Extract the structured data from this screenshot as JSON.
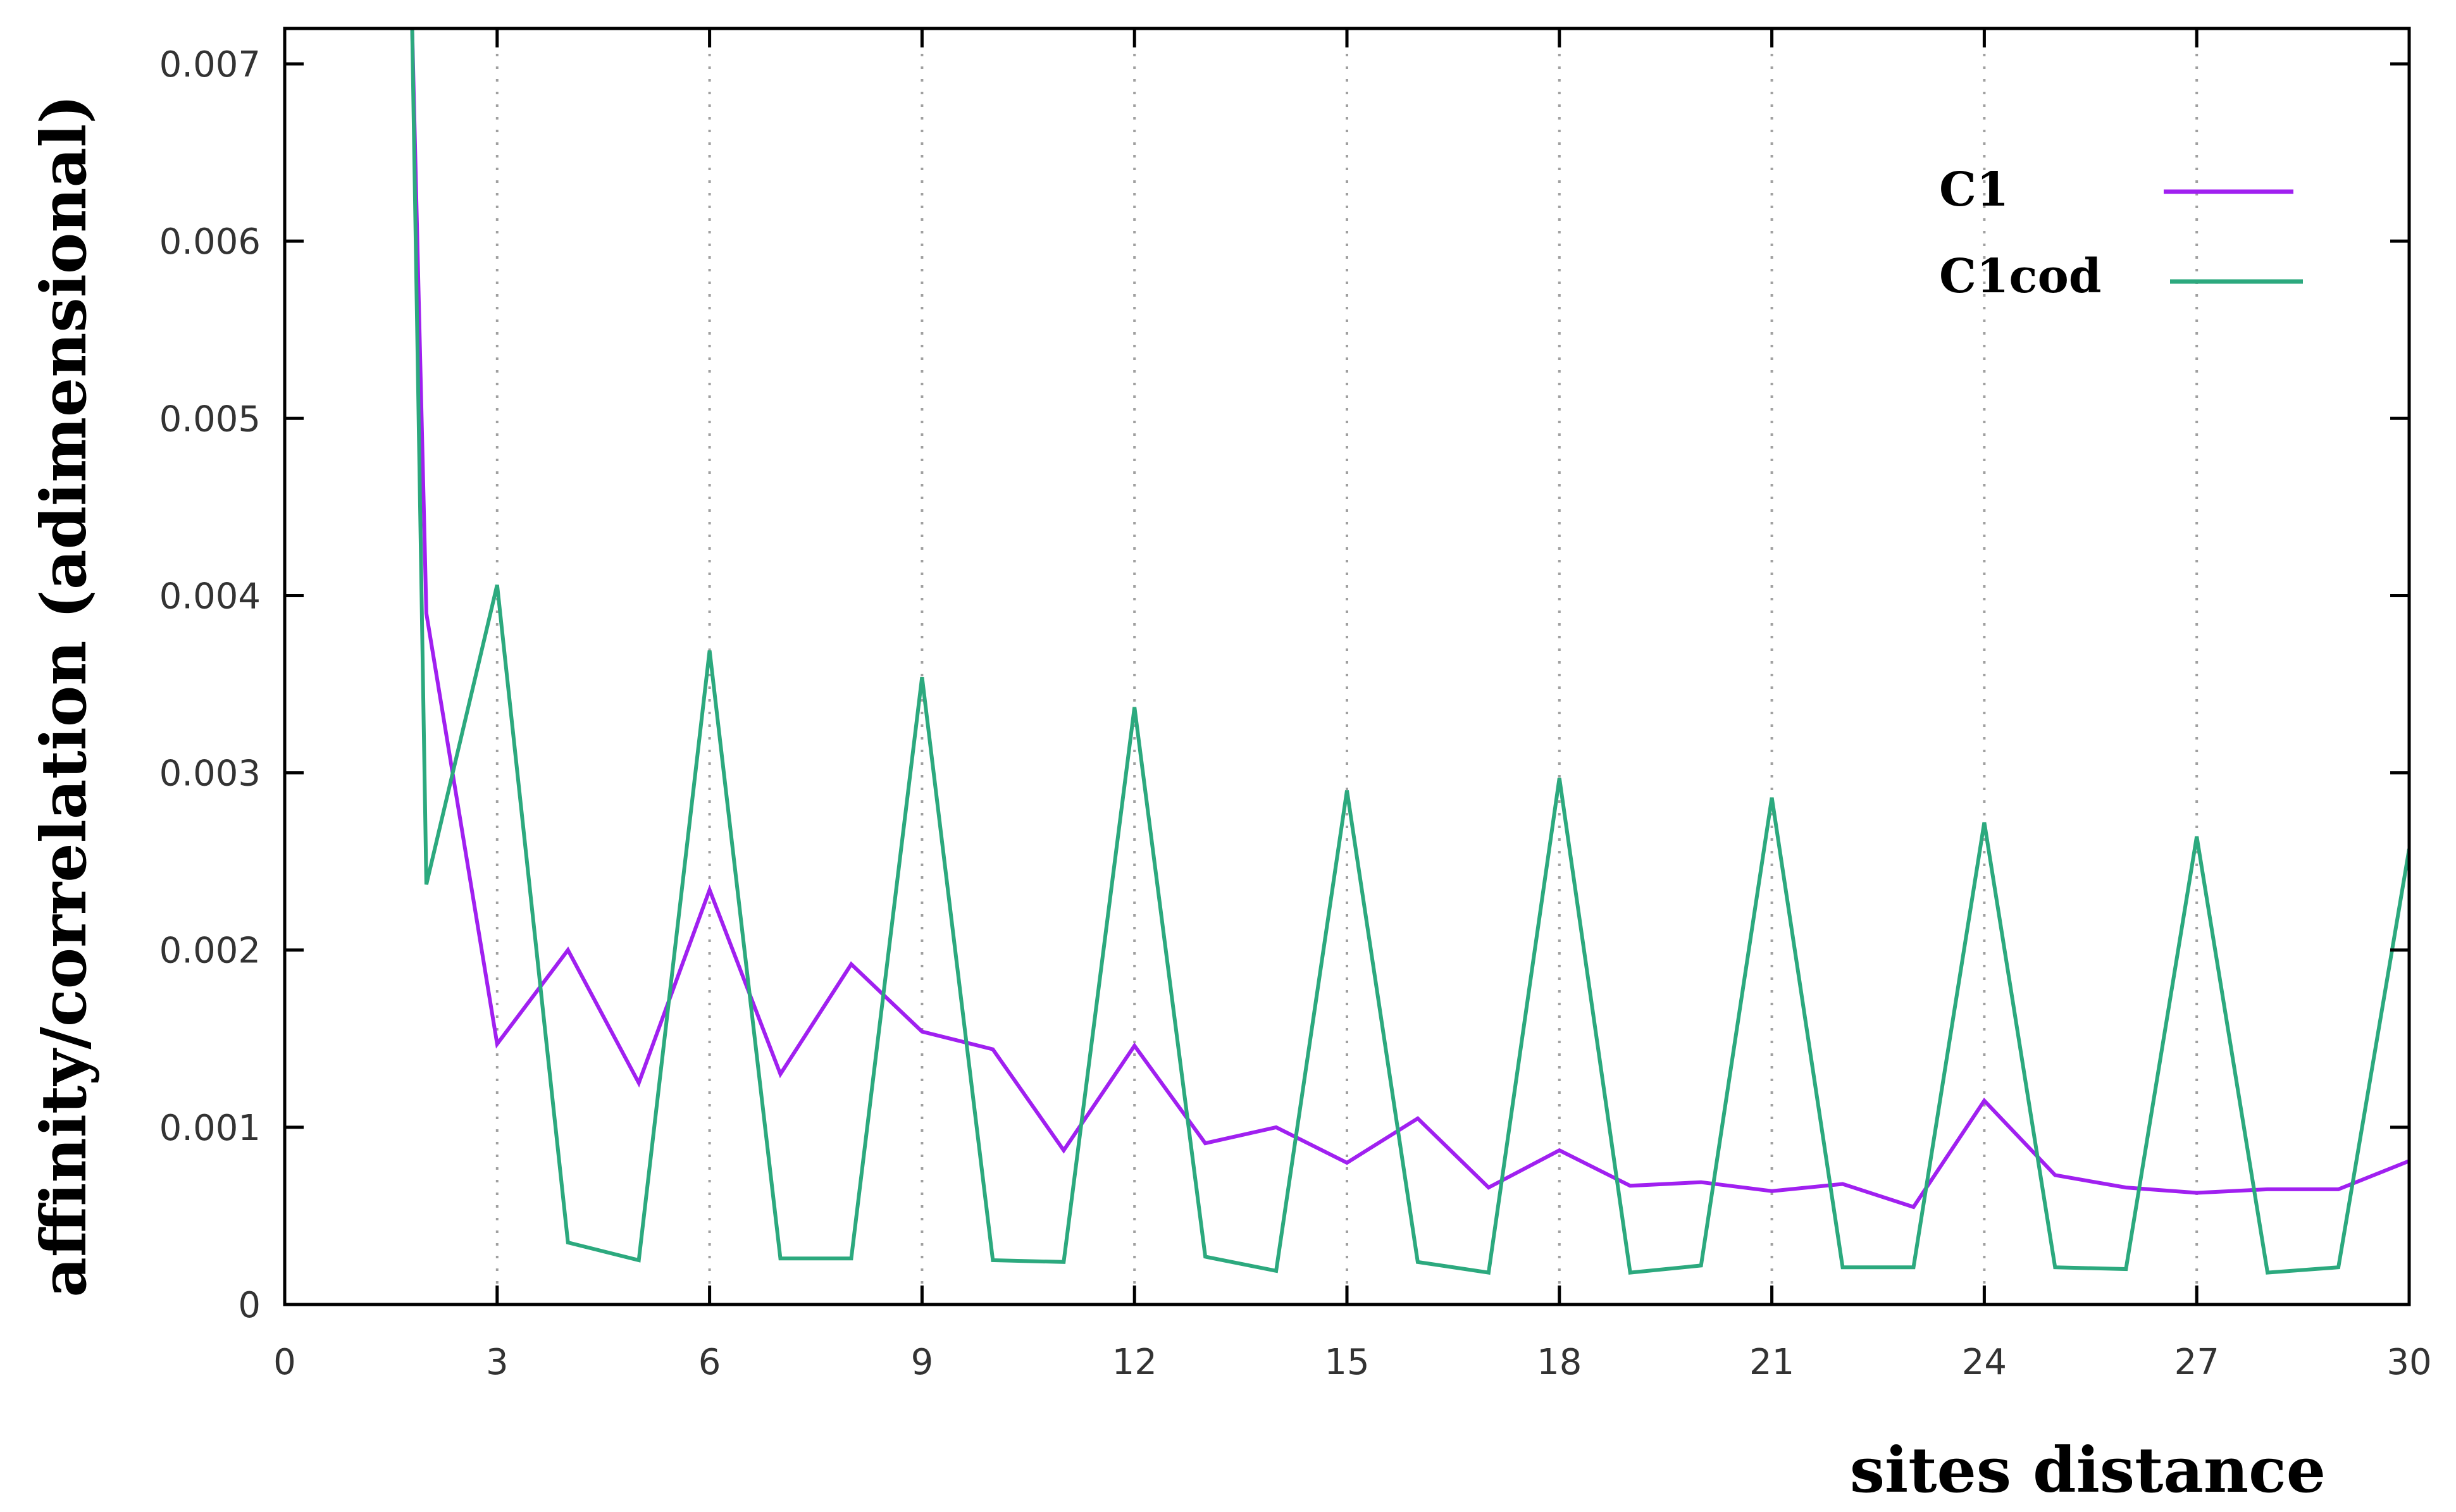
{
  "chart_data": {
    "type": "line",
    "title": "",
    "xlabel": "sites distance",
    "ylabel": "affinity/correlation (adimensional)",
    "xlim": [
      0,
      30
    ],
    "ylim": [
      0,
      0.0072
    ],
    "x_ticks": [
      0,
      3,
      6,
      9,
      12,
      15,
      18,
      21,
      24,
      27,
      30
    ],
    "y_ticks": [
      0,
      0.001,
      0.002,
      0.003,
      0.004,
      0.005,
      0.006,
      0.007
    ],
    "x_tick_labels": [
      "0",
      "3",
      "6",
      "9",
      "12",
      "15",
      "18",
      "21",
      "24",
      "27",
      "30"
    ],
    "y_tick_labels": [
      "0",
      "0.001",
      "0.002",
      "0.003",
      "0.004",
      "0.005",
      "0.006",
      "0.007"
    ],
    "grid": {
      "vertical_dotted": true,
      "horizontal": false
    },
    "legend_position": "top-right",
    "series": [
      {
        "name": "C1",
        "color": "#a020f0",
        "x": [
          1.8,
          2,
          3,
          4,
          5,
          6,
          7,
          8,
          9,
          10,
          11,
          12,
          13,
          14,
          15,
          16,
          17,
          18,
          19,
          20,
          21,
          22,
          23,
          24,
          25,
          26,
          27,
          28,
          29,
          30
        ],
        "y": [
          0.0072,
          0.0039,
          0.00147,
          0.002,
          0.00125,
          0.00234,
          0.0013,
          0.00192,
          0.00154,
          0.00144,
          0.00087,
          0.00146,
          0.00091,
          0.001,
          0.0008,
          0.00105,
          0.00066,
          0.00087,
          0.00067,
          0.00069,
          0.00064,
          0.00068,
          0.00055,
          0.00115,
          0.00073,
          0.00066,
          0.00063,
          0.00065,
          0.00065,
          0.00081
        ]
      },
      {
        "name": "C1cod",
        "color": "#2ca97e",
        "x": [
          1.8,
          2,
          3,
          4,
          5,
          6,
          7,
          8,
          9,
          10,
          11,
          12,
          13,
          14,
          15,
          16,
          17,
          18,
          19,
          20,
          21,
          22,
          23,
          24,
          25,
          26,
          27,
          28,
          29,
          30
        ],
        "y": [
          0.0072,
          0.00237,
          0.00406,
          0.00035,
          0.00025,
          0.00369,
          0.00026,
          0.00026,
          0.00354,
          0.00025,
          0.00024,
          0.00337,
          0.00027,
          0.00019,
          0.0029,
          0.00024,
          0.00018,
          0.00297,
          0.00018,
          0.00022,
          0.00286,
          0.00021,
          0.00021,
          0.00272,
          0.00021,
          0.0002,
          0.00264,
          0.00018,
          0.00021,
          0.00257
        ]
      }
    ]
  }
}
